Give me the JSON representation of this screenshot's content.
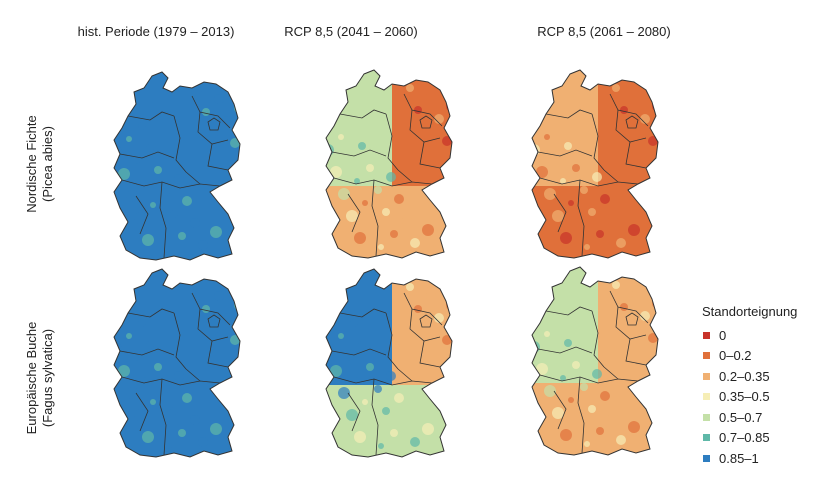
{
  "columns": [
    {
      "label": "hist. Periode (1979 – 2013)"
    },
    {
      "label": "RCP 8,5 (2041 – 2060)"
    },
    {
      "label": "RCP 8,5 (2061 – 2080)"
    }
  ],
  "rows": [
    {
      "species": "Nordische Fichte",
      "latin": "(Picea abies)"
    },
    {
      "species": "Europäische Buche",
      "latin": "(Fagus sylvatica)"
    }
  ],
  "legend": {
    "title": "Standorteignung",
    "items": [
      {
        "label": "0",
        "color": "#c8332a"
      },
      {
        "label": "0–0.2",
        "color": "#e0703a"
      },
      {
        "label": "0.2–0.35",
        "color": "#f0b072"
      },
      {
        "label": "0.35–0.5",
        "color": "#f6eeb6"
      },
      {
        "label": "0.5–0.7",
        "color": "#c4e0a8"
      },
      {
        "label": "0.7–0.85",
        "color": "#5fb8a8"
      },
      {
        "label": "0.85–1",
        "color": "#2d7dc0"
      }
    ]
  },
  "maps": [
    {
      "period": "hist",
      "species": "Nordische Fichte",
      "west": 6,
      "east": 6,
      "south": 6
    },
    {
      "period": "2041-2060",
      "species": "Nordische Fichte",
      "west": 4,
      "east": 1,
      "south": 2
    },
    {
      "period": "2061-2080",
      "species": "Nordische Fichte",
      "west": 2,
      "east": 1,
      "south": 1
    },
    {
      "period": "hist",
      "species": "Europäische Buche",
      "west": 6,
      "east": 6,
      "south": 6
    },
    {
      "period": "2041-2060",
      "species": "Europäische Buche",
      "west": 6,
      "east": 2,
      "south": 4
    },
    {
      "period": "2061-2080",
      "species": "Europäische Buche",
      "west": 4,
      "east": 2,
      "south": 2
    }
  ]
}
